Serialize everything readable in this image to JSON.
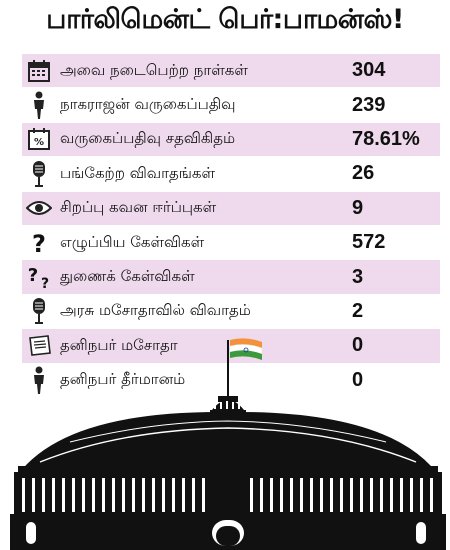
{
  "title": "பார்லிமென்ட் பெர்:பாமன்ஸ்!",
  "rows": [
    {
      "icon": "calendar-icon",
      "label": "அவை நடைபெற்ற நாள்கள்",
      "value": "304"
    },
    {
      "icon": "person-icon",
      "label": "நாகராஜன் வருகைப்பதிவு",
      "value": "239"
    },
    {
      "icon": "percent-calendar-icon",
      "label": "வருகைப்பதிவு சதவிகிதம்",
      "value": "78.61%"
    },
    {
      "icon": "microphone-icon",
      "label": "பங்கேற்ற விவாதங்கள்",
      "value": "26"
    },
    {
      "icon": "eye-icon",
      "label": "சிறப்பு கவன ஈர்ப்புகள்",
      "value": "9"
    },
    {
      "icon": "question-icon",
      "label": "எழுப்பிய கேள்விகள்",
      "value": "572"
    },
    {
      "icon": "double-question-icon",
      "label": "துணைக் கேள்விகள்",
      "value": "3"
    },
    {
      "icon": "microphone-icon",
      "label": "அரசு மசோதாவில் விவாதம்",
      "value": "2"
    },
    {
      "icon": "document-icon",
      "label": "தனிநபர் மசோதா",
      "value": "0"
    },
    {
      "icon": "person-icon",
      "label": "தனிநபர் தீர்மானம்",
      "value": "0"
    }
  ],
  "colors": {
    "row_shade": "#efd9ec",
    "flag_saffron": "#f4923a",
    "flag_green": "#3a9a3c",
    "flag_chakra": "#1f3a8a",
    "building": "#111111"
  }
}
